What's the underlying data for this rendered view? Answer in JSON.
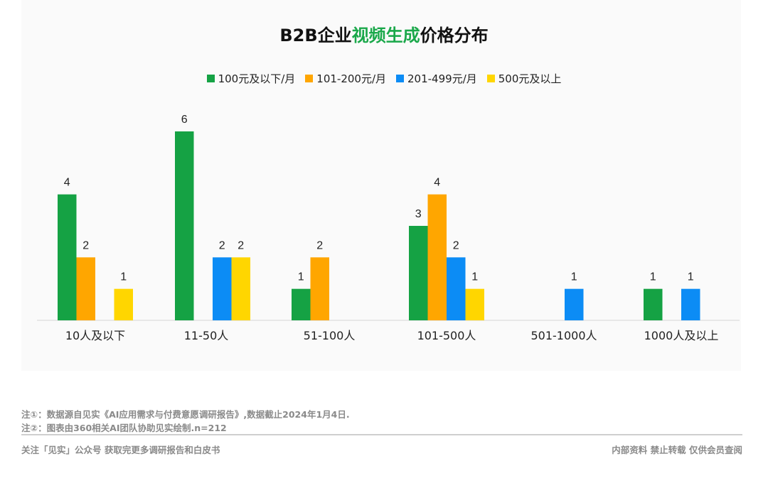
{
  "header": {
    "title_prefix": "B2B企业",
    "title_highlight": "视频生成",
    "title_suffix": "价格分布"
  },
  "colors": {
    "green": "#15a244",
    "orange": "#ffa600",
    "blue": "#0c8cf5",
    "yellow": "#ffd600",
    "title_highlight": "#1aa84a"
  },
  "chart_data": {
    "type": "bar",
    "title": "B2B企业视频生成价格分布",
    "categories": [
      "10人及以下",
      "11-50人",
      "51-100人",
      "101-500人",
      "501-1000人",
      "1000人及以上"
    ],
    "series": [
      {
        "name": "100元及以下/月",
        "color": "#15a244",
        "values": [
          4,
          6,
          1,
          3,
          null,
          1
        ]
      },
      {
        "name": "101-200元/月",
        "color": "#ffa600",
        "values": [
          2,
          null,
          2,
          4,
          null,
          null
        ]
      },
      {
        "name": "201-499元/月",
        "color": "#0c8cf5",
        "values": [
          null,
          2,
          null,
          2,
          1,
          1
        ]
      },
      {
        "name": "500元及以上",
        "color": "#ffd600",
        "values": [
          1,
          2,
          null,
          1,
          null,
          null
        ]
      }
    ],
    "ylim": [
      0,
      6
    ],
    "grid": false,
    "legend_position": "top-center",
    "data_labels": true
  },
  "notes": {
    "note1": "注①：数据源自见实《AI应用需求与付费意愿调研报告》,数据截止2024年1月4日.",
    "note2": "注②：图表由360相关AI团队协助见实绘制.n=212"
  },
  "footer": {
    "left": "关注「见实」公众号 获取完更多调研报告和白皮书",
    "right": "内部资料 禁止转载 仅供会员查阅"
  }
}
